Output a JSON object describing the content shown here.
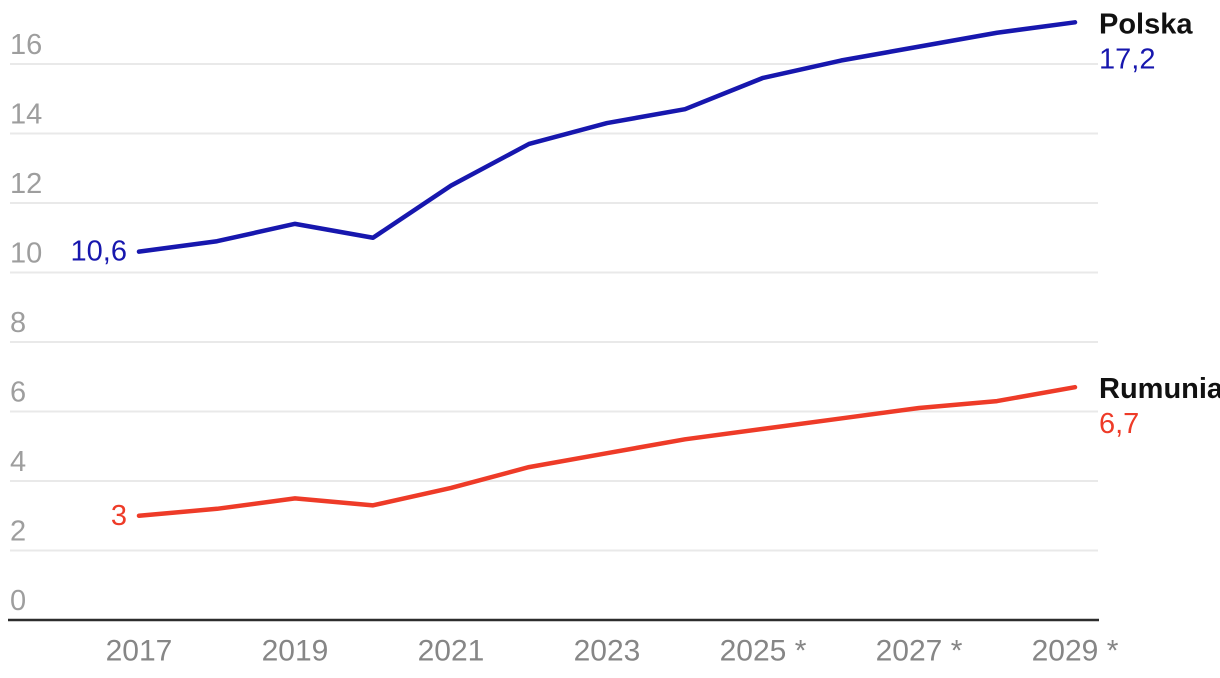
{
  "page": {
    "background": "#ffffff"
  },
  "chart_data": {
    "type": "line",
    "title": "",
    "x": [
      2017,
      2018,
      2019,
      2020,
      2021,
      2022,
      2023,
      2024,
      2025,
      2026,
      2027,
      2028,
      2029
    ],
    "x_ticks": [
      {
        "year": 2017,
        "label": "2017"
      },
      {
        "year": 2019,
        "label": "2019"
      },
      {
        "year": 2021,
        "label": "2021"
      },
      {
        "year": 2023,
        "label": "2023"
      },
      {
        "year": 2025,
        "label": "2025 *"
      },
      {
        "year": 2027,
        "label": "2027 *"
      },
      {
        "year": 2029,
        "label": "2029 *"
      }
    ],
    "y_ticks": [
      0,
      2,
      4,
      6,
      8,
      10,
      12,
      14,
      16
    ],
    "ylim": [
      0,
      16
    ],
    "grid": "horizontal-only",
    "legend_position": "line-end-labels",
    "series": [
      {
        "id": "polska",
        "name": "Polska",
        "color": "#1717ae",
        "values": [
          10.6,
          10.9,
          11.4,
          11.0,
          12.5,
          13.7,
          14.3,
          14.7,
          15.6,
          16.1,
          16.5,
          16.9,
          17.2
        ],
        "first_value_label": "10,6",
        "last_value_label": "17,2"
      },
      {
        "id": "rumunia",
        "name": "Rumunia",
        "color": "#ee3b28",
        "values": [
          3.0,
          3.2,
          3.5,
          3.3,
          3.8,
          4.4,
          4.8,
          5.2,
          5.5,
          5.8,
          6.1,
          6.3,
          6.7
        ],
        "first_value_label": "3",
        "last_value_label": "6,7"
      }
    ],
    "style_colors": {
      "gridline": "#e9e9e9",
      "axis_line": "#2d2d2d",
      "y_tick_label": "#9e9e9e",
      "x_tick_label": "#868686",
      "series_name_text": "#111111"
    }
  }
}
